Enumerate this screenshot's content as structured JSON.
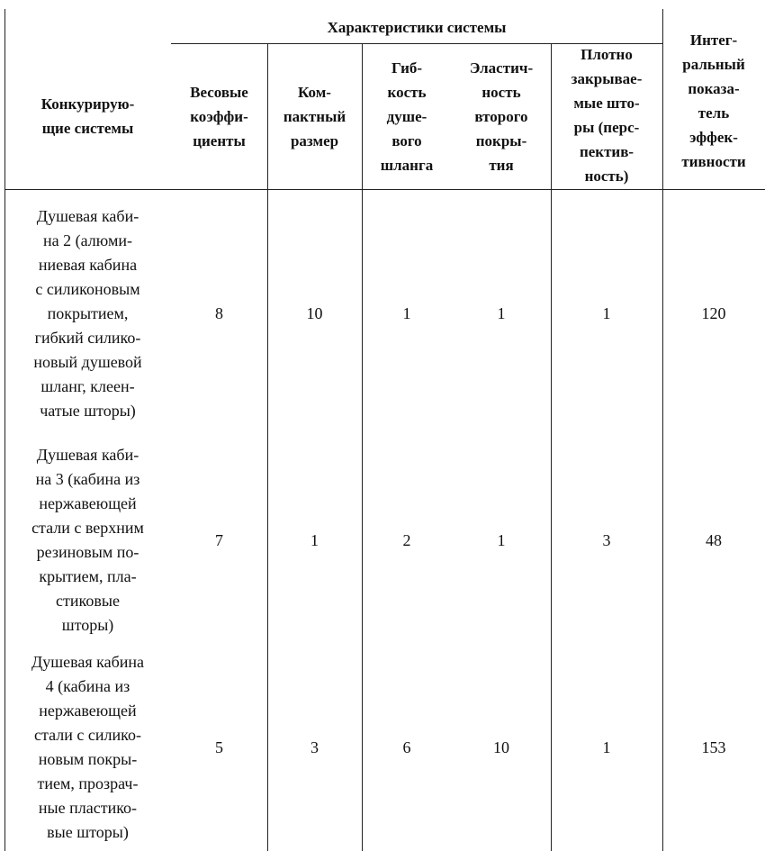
{
  "table": {
    "group_header": "Характеристики системы",
    "headers": [
      "Конкурирую-\nщие системы",
      "Весовые\nкоэффи-\nциенты",
      "Ком-\nпактный\nразмер",
      "Гиб-\nкость\nдуше-\nвого\nшланга",
      "Эластич-\nность\nвторого\nпокры-\nтия",
      "Плотно\nзакрывае-\nмые што-\nры (перс-\nпектив-\nность)",
      "Интег-\nральный\nпоказа-\nтель\nэффек-\nтивности"
    ],
    "rows": [
      {
        "name": "Душевая каби-\nна 2 (алюми-\nниевая кабина\nс силиконовым\nпокрытием,\nгибкий силико-\nновый душевой\nшланг, клеен-\nчатые шторы)",
        "values": [
          "8",
          "10",
          "1",
          "1",
          "1",
          "120"
        ]
      },
      {
        "name": "Душевая каби-\nна 3 (кабина из\nнержавеющей\nстали с верхним\nрезиновым по-\nкрытием, пла-\nстиковые\nшторы)",
        "values": [
          "7",
          "1",
          "2",
          "1",
          "3",
          "48"
        ]
      },
      {
        "name": "Душевая кабина\n4 (кабина из\nнержавеющей\nстали с силико-\nновым покры-\nтием, прозрач-\nные пластико-\nвые шторы)",
        "values": [
          "5",
          "3",
          "6",
          "10",
          "1",
          "153"
        ]
      }
    ]
  }
}
